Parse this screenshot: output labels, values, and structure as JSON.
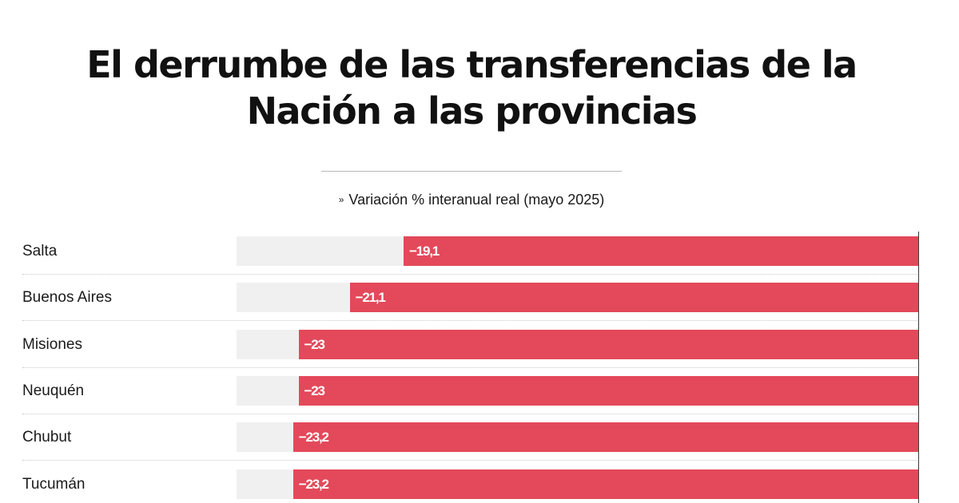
{
  "title_lines": [
    "El derrumbe de las transferencias de la",
    "Nación a las provincias"
  ],
  "legend": {
    "marker": "»",
    "label": "Variación % interanual real (mayo 2025)"
  },
  "chart_data": {
    "type": "bar",
    "orientation": "horizontal",
    "title": "El derrumbe de las transferencias de la Nación a las provincias",
    "categories": [
      "Salta",
      "Buenos Aires",
      "Misiones",
      "Neuquén",
      "Chubut",
      "Tucumán"
    ],
    "values": [
      -19.1,
      -21.1,
      -23,
      -23,
      -23.2,
      -23.2
    ],
    "value_labels": [
      "−19,1",
      "−21,1",
      "−23",
      "−23",
      "−23,2",
      "−23,2"
    ],
    "series": [
      {
        "name": "Variación % interanual real (mayo 2025)",
        "values": [
          -19.1,
          -21.1,
          -23,
          -23,
          -23.2,
          -23.2
        ]
      }
    ],
    "xlim": [
      -26,
      0
    ],
    "xlabel": "",
    "ylabel": "",
    "grid": false,
    "legend_position": "top-center",
    "colors": {
      "bar": "#e3495a",
      "track": "#f0f0f0"
    }
  }
}
